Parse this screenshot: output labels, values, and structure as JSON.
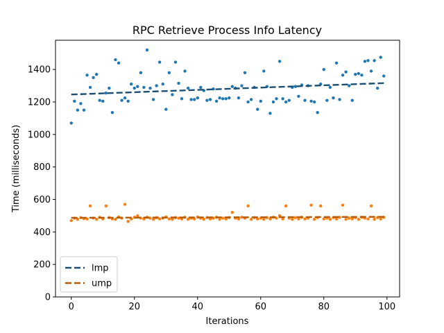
{
  "chart_data": {
    "type": "scatter",
    "title": "RPC Retrieve Process Info Latency",
    "xlabel": "Iterations",
    "ylabel": "Time (milliseconds)",
    "xlim": [
      -5,
      104
    ],
    "ylim": [
      0,
      1580
    ],
    "xticks": [
      0,
      20,
      40,
      60,
      80,
      100
    ],
    "yticks": [
      0,
      200,
      400,
      600,
      800,
      1000,
      1200,
      1400
    ],
    "grid": false,
    "legend_position": "lower-left",
    "series": [
      {
        "name": "lmp",
        "color": "#1f77b4",
        "trend_color": "#1a4e72",
        "trend": {
          "x": [
            0,
            99
          ],
          "y": [
            1246,
            1316
          ]
        },
        "x": [
          0,
          1,
          2,
          3,
          4,
          5,
          6,
          7,
          8,
          9,
          10,
          11,
          12,
          13,
          14,
          15,
          16,
          17,
          18,
          19,
          20,
          21,
          22,
          23,
          24,
          25,
          26,
          27,
          28,
          29,
          30,
          31,
          32,
          33,
          34,
          35,
          36,
          37,
          38,
          39,
          40,
          41,
          42,
          43,
          44,
          45,
          46,
          47,
          48,
          49,
          50,
          51,
          52,
          53,
          54,
          55,
          56,
          57,
          58,
          59,
          60,
          61,
          62,
          63,
          64,
          65,
          66,
          67,
          68,
          69,
          70,
          71,
          72,
          73,
          74,
          75,
          76,
          77,
          78,
          79,
          80,
          81,
          82,
          83,
          84,
          85,
          86,
          87,
          88,
          89,
          90,
          91,
          92,
          93,
          94,
          95,
          96,
          97,
          98,
          99
        ],
        "y": [
          1070,
          1205,
          1150,
          1190,
          1150,
          1365,
          1290,
          1350,
          1370,
          1210,
          1205,
          1255,
          1285,
          1135,
          1460,
          1440,
          1210,
          1225,
          1205,
          1310,
          1285,
          1295,
          1380,
          1290,
          1520,
          1285,
          1215,
          1300,
          1445,
          1310,
          1155,
          1380,
          1245,
          1445,
          1315,
          1220,
          1390,
          1285,
          1215,
          1215,
          1225,
          1290,
          1270,
          1210,
          1215,
          1280,
          1205,
          1225,
          1220,
          1220,
          1225,
          1295,
          1285,
          1225,
          1300,
          1380,
          1200,
          1215,
          1290,
          1155,
          1205,
          1390,
          1295,
          1130,
          1200,
          1220,
          1450,
          1220,
          1200,
          1210,
          1290,
          1295,
          1235,
          1305,
          1210,
          1300,
          1205,
          1200,
          1135,
          1310,
          1400,
          1210,
          1290,
          1225,
          1440,
          1215,
          1365,
          1385,
          1300,
          1210,
          1370,
          1375,
          1365,
          1450,
          1455,
          1390,
          1455,
          1285,
          1475,
          1360
        ]
      },
      {
        "name": "ump",
        "color": "#ff7f0e",
        "trend_color": "#b35900",
        "trend": {
          "x": [
            0,
            99
          ],
          "y": [
            487,
            493
          ]
        },
        "x": [
          0,
          1,
          2,
          3,
          4,
          5,
          6,
          7,
          8,
          9,
          10,
          11,
          12,
          13,
          14,
          15,
          16,
          17,
          18,
          19,
          20,
          21,
          22,
          23,
          24,
          25,
          26,
          27,
          28,
          29,
          30,
          31,
          32,
          33,
          34,
          35,
          36,
          37,
          38,
          39,
          40,
          41,
          42,
          43,
          44,
          45,
          46,
          47,
          48,
          49,
          50,
          51,
          52,
          53,
          54,
          55,
          56,
          57,
          58,
          59,
          60,
          61,
          62,
          63,
          64,
          65,
          66,
          67,
          68,
          69,
          70,
          71,
          72,
          73,
          74,
          75,
          76,
          77,
          78,
          79,
          80,
          81,
          82,
          83,
          84,
          85,
          86,
          87,
          88,
          89,
          90,
          91,
          92,
          93,
          94,
          95,
          96,
          97,
          98,
          99
        ],
        "y": [
          470,
          485,
          478,
          488,
          482,
          480,
          560,
          485,
          478,
          490,
          480,
          560,
          488,
          480,
          478,
          492,
          485,
          570,
          465,
          480,
          490,
          500,
          485,
          480,
          490,
          485,
          478,
          488,
          480,
          485,
          492,
          480,
          478,
          488,
          485,
          480,
          490,
          478,
          485,
          480,
          492,
          485,
          478,
          488,
          480,
          485,
          490,
          478,
          485,
          480,
          488,
          520,
          485,
          480,
          490,
          485,
          560,
          478,
          488,
          480,
          485,
          478,
          488,
          480,
          490,
          485,
          500,
          480,
          560,
          485,
          478,
          488,
          480,
          490,
          480,
          485,
          565,
          478,
          488,
          560,
          480,
          485,
          478,
          488,
          480,
          490,
          565,
          478,
          485,
          480,
          488,
          478,
          490,
          485,
          480,
          560,
          478,
          488,
          480,
          490
        ]
      }
    ]
  }
}
